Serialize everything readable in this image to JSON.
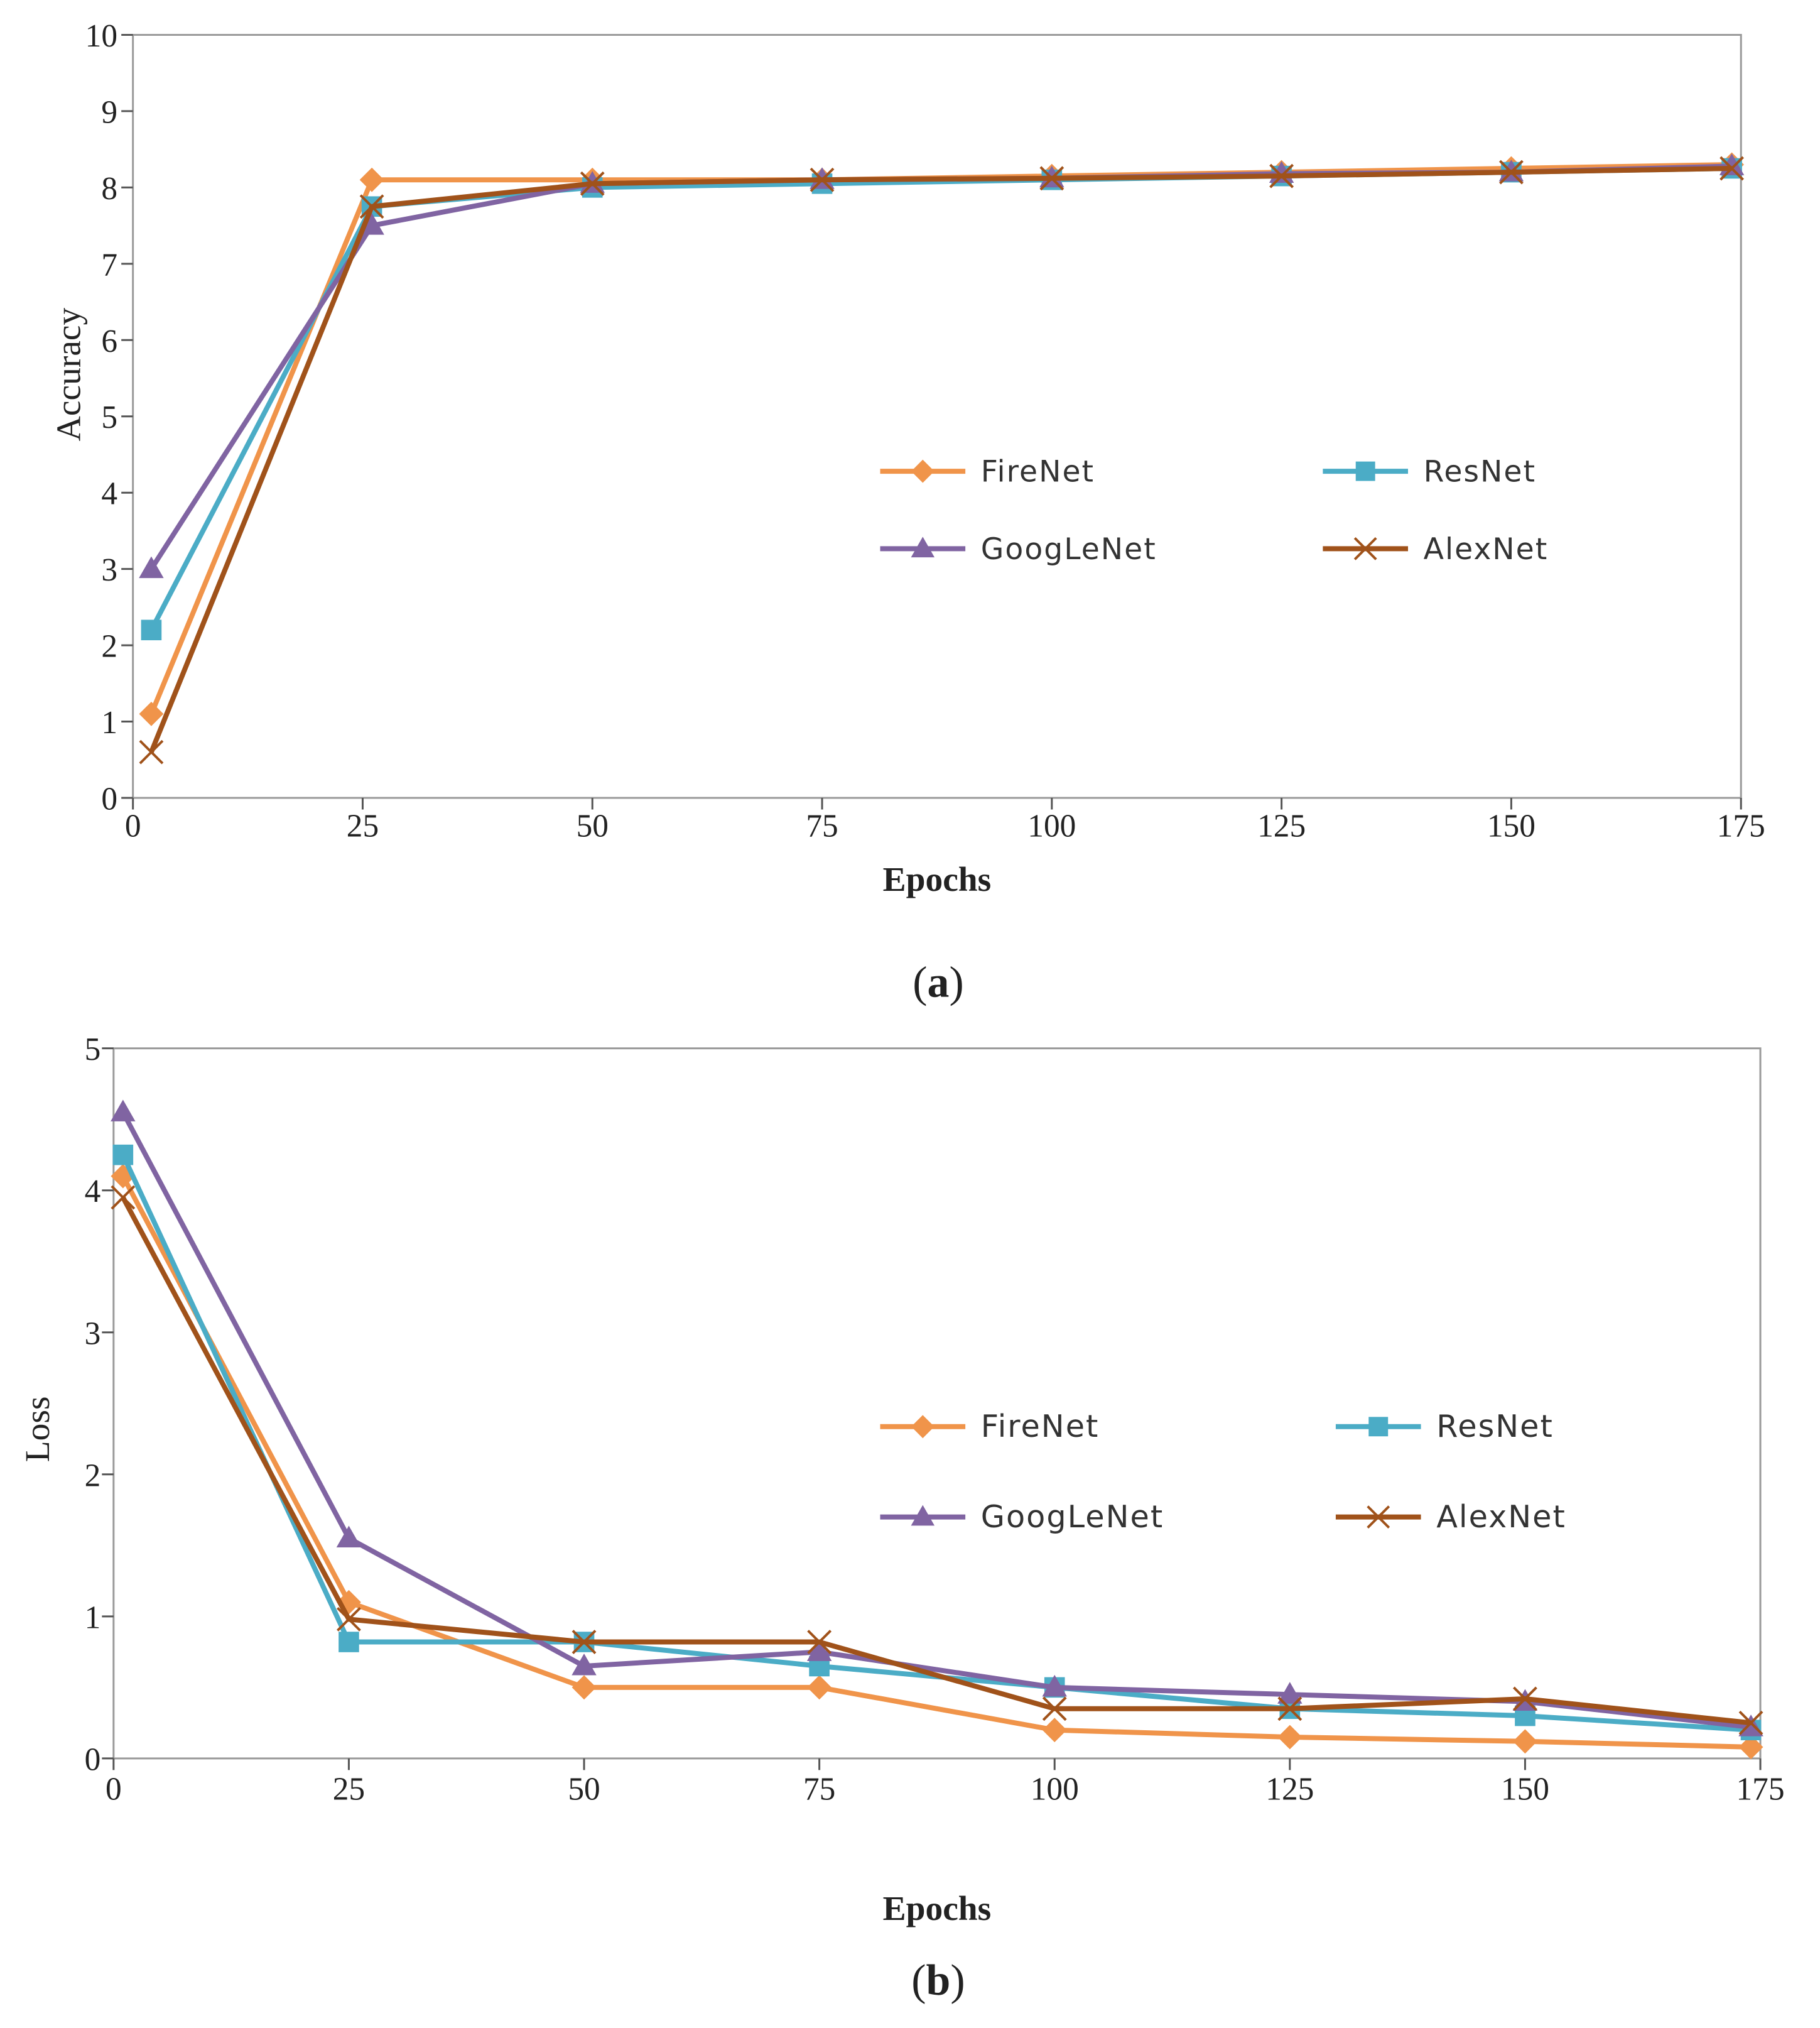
{
  "colors": {
    "FireNet": "#F0944A",
    "ResNet": "#4BACC6",
    "GoogLeNet": "#8064A2",
    "AlexNet": "#A0521A"
  },
  "chart_data": [
    {
      "type": "line",
      "panel": "a",
      "caption": "(a)",
      "caption_letter": "a",
      "xlabel": "Epochs",
      "ylabel": "Accuracy",
      "xlim": [
        0,
        175
      ],
      "ylim": [
        0,
        10
      ],
      "x_ticks": [
        0,
        25,
        50,
        75,
        100,
        125,
        150,
        175
      ],
      "y_ticks": [
        0,
        1,
        2,
        3,
        4,
        5,
        6,
        7,
        8,
        9,
        10
      ],
      "x_tick_labels": [
        "0",
        "25",
        "50",
        "75",
        "100",
        "125",
        "150",
        "175"
      ],
      "y_tick_labels": [
        "0",
        "1",
        "2",
        "3",
        "4",
        "5",
        "6",
        "7",
        "8",
        "9",
        "10"
      ],
      "grid": false,
      "legend": [
        "FireNet",
        "ResNet",
        "GoogLeNet",
        "AlexNet"
      ],
      "series": [
        {
          "name": "FireNet",
          "marker": "diamond",
          "x": [
            2,
            26,
            50,
            75,
            100,
            125,
            150,
            174
          ],
          "values": [
            1.1,
            8.1,
            8.1,
            8.1,
            8.15,
            8.2,
            8.25,
            8.3
          ]
        },
        {
          "name": "ResNet",
          "marker": "square",
          "x": [
            2,
            26,
            50,
            75,
            100,
            125,
            150,
            174
          ],
          "values": [
            2.2,
            7.75,
            8.0,
            8.05,
            8.1,
            8.15,
            8.2,
            8.25
          ]
        },
        {
          "name": "GoogLeNet",
          "marker": "triangle",
          "x": [
            2,
            26,
            50,
            75,
            100,
            125,
            150,
            174
          ],
          "values": [
            3.0,
            7.5,
            8.05,
            8.1,
            8.12,
            8.18,
            8.2,
            8.28
          ]
        },
        {
          "name": "AlexNet",
          "marker": "x",
          "x": [
            2,
            26,
            50,
            75,
            100,
            125,
            150,
            174
          ],
          "values": [
            0.6,
            7.75,
            8.05,
            8.1,
            8.12,
            8.15,
            8.2,
            8.25
          ]
        }
      ]
    },
    {
      "type": "line",
      "panel": "b",
      "caption": "(b)",
      "caption_letter": "b",
      "xlabel": "Epochs",
      "ylabel": "Loss",
      "xlim": [
        0,
        175
      ],
      "ylim": [
        0,
        5
      ],
      "x_ticks": [
        0,
        25,
        50,
        75,
        100,
        125,
        150,
        175
      ],
      "y_ticks": [
        0,
        1,
        2,
        3,
        4,
        5
      ],
      "x_tick_labels": [
        "0",
        "25",
        "50",
        "75",
        "100",
        "125",
        "150",
        "175"
      ],
      "y_tick_labels": [
        "0",
        "1",
        "2",
        "3",
        "4",
        "5"
      ],
      "grid": false,
      "legend": [
        "FireNet",
        "ResNet",
        "GoogLeNet",
        "AlexNet"
      ],
      "series": [
        {
          "name": "FireNet",
          "marker": "diamond",
          "x": [
            1,
            25,
            50,
            75,
            100,
            125,
            150,
            174
          ],
          "values": [
            4.1,
            1.1,
            0.5,
            0.5,
            0.2,
            0.15,
            0.12,
            0.08
          ]
        },
        {
          "name": "ResNet",
          "marker": "square",
          "x": [
            1,
            25,
            50,
            75,
            100,
            125,
            150,
            174
          ],
          "values": [
            4.25,
            0.82,
            0.82,
            0.65,
            0.5,
            0.35,
            0.3,
            0.2
          ]
        },
        {
          "name": "GoogLeNet",
          "marker": "triangle",
          "x": [
            1,
            25,
            50,
            75,
            100,
            125,
            150,
            174
          ],
          "values": [
            4.55,
            1.55,
            0.65,
            0.75,
            0.5,
            0.45,
            0.4,
            0.22
          ]
        },
        {
          "name": "AlexNet",
          "marker": "x",
          "x": [
            1,
            25,
            50,
            75,
            100,
            125,
            150,
            174
          ],
          "values": [
            3.95,
            0.98,
            0.82,
            0.82,
            0.35,
            0.35,
            0.42,
            0.25
          ]
        }
      ]
    }
  ]
}
